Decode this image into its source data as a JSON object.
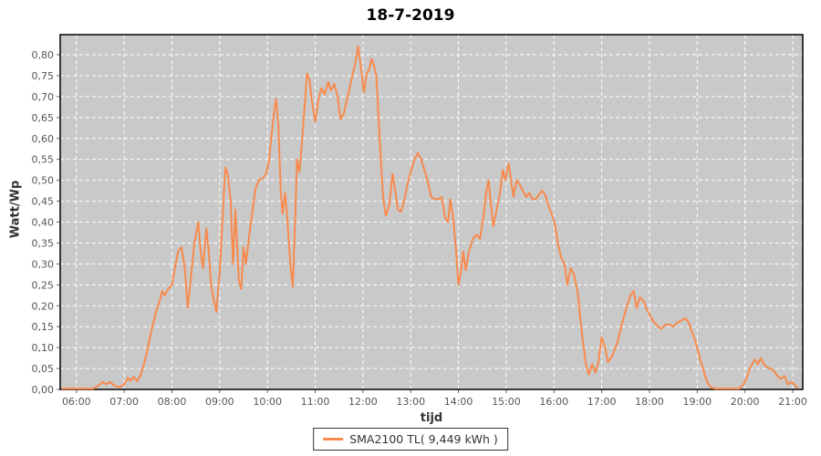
{
  "title": "18-7-2019",
  "axes": {
    "x_label": "tijd",
    "y_label": "Watt/Wp"
  },
  "legend": {
    "series_label": "SMA2100 TL( 9,449 kWh )"
  },
  "colors": {
    "plot_bg": "#c9c9c9",
    "grid": "#ffffff",
    "line": "#f88a4d",
    "tick_text": "#555555",
    "tick_mark": "#666666",
    "plot_border": "#000000"
  },
  "chart_data": {
    "type": "line",
    "title": "18-7-2019",
    "xlabel": "tijd",
    "ylabel": "Watt/Wp",
    "x_unit": "hour_of_day",
    "xlim": [
      5.66,
      21.21
    ],
    "ylim": [
      0,
      0.848
    ],
    "grid": "white dashed on gray background",
    "legend_position": "bottom-center",
    "x_ticks": [
      {
        "v": 6,
        "label": "06:00"
      },
      {
        "v": 7,
        "label": "07:00"
      },
      {
        "v": 8,
        "label": "08:00"
      },
      {
        "v": 9,
        "label": "09:00"
      },
      {
        "v": 10,
        "label": "10:00"
      },
      {
        "v": 11,
        "label": "11:00"
      },
      {
        "v": 12,
        "label": "12:00"
      },
      {
        "v": 13,
        "label": "13:00"
      },
      {
        "v": 14,
        "label": "14:00"
      },
      {
        "v": 15,
        "label": "15:00"
      },
      {
        "v": 16,
        "label": "16:00"
      },
      {
        "v": 17,
        "label": "17:00"
      },
      {
        "v": 18,
        "label": "18:00"
      },
      {
        "v": 19,
        "label": "19:00"
      },
      {
        "v": 20,
        "label": "20:00"
      },
      {
        "v": 21,
        "label": "21:00"
      }
    ],
    "y_ticks": [
      {
        "v": 0.0,
        "label": "0,00"
      },
      {
        "v": 0.05,
        "label": "0,05"
      },
      {
        "v": 0.1,
        "label": "0,10"
      },
      {
        "v": 0.15,
        "label": "0,15"
      },
      {
        "v": 0.2,
        "label": "0,20"
      },
      {
        "v": 0.25,
        "label": "0,25"
      },
      {
        "v": 0.3,
        "label": "0,30"
      },
      {
        "v": 0.35,
        "label": "0,35"
      },
      {
        "v": 0.4,
        "label": "0,40"
      },
      {
        "v": 0.45,
        "label": "0,45"
      },
      {
        "v": 0.5,
        "label": "0,50"
      },
      {
        "v": 0.55,
        "label": "0,55"
      },
      {
        "v": 0.6,
        "label": "0,60"
      },
      {
        "v": 0.65,
        "label": "0,65"
      },
      {
        "v": 0.7,
        "label": "0,70"
      },
      {
        "v": 0.75,
        "label": "0,75"
      },
      {
        "v": 0.8,
        "label": "0,80"
      }
    ],
    "series": [
      {
        "name": "SMA2100 TL( 9,449 kWh )",
        "color": "#f88a4d",
        "points": [
          [
            5.7,
            0.002
          ],
          [
            6.0,
            0.002
          ],
          [
            6.2,
            0.002
          ],
          [
            6.35,
            0.002
          ],
          [
            6.45,
            0.008
          ],
          [
            6.55,
            0.018
          ],
          [
            6.62,
            0.012
          ],
          [
            6.7,
            0.018
          ],
          [
            6.78,
            0.01
          ],
          [
            6.9,
            0.005
          ],
          [
            7.0,
            0.012
          ],
          [
            7.08,
            0.028
          ],
          [
            7.13,
            0.02
          ],
          [
            7.2,
            0.03
          ],
          [
            7.27,
            0.02
          ],
          [
            7.33,
            0.03
          ],
          [
            7.4,
            0.055
          ],
          [
            7.47,
            0.085
          ],
          [
            7.53,
            0.12
          ],
          [
            7.6,
            0.155
          ],
          [
            7.68,
            0.19
          ],
          [
            7.75,
            0.215
          ],
          [
            7.8,
            0.235
          ],
          [
            7.85,
            0.225
          ],
          [
            7.92,
            0.24
          ],
          [
            8.0,
            0.25
          ],
          [
            8.07,
            0.295
          ],
          [
            8.13,
            0.33
          ],
          [
            8.2,
            0.34
          ],
          [
            8.27,
            0.29
          ],
          [
            8.33,
            0.195
          ],
          [
            8.4,
            0.27
          ],
          [
            8.47,
            0.35
          ],
          [
            8.55,
            0.4
          ],
          [
            8.6,
            0.33
          ],
          [
            8.65,
            0.29
          ],
          [
            8.72,
            0.385
          ],
          [
            8.77,
            0.33
          ],
          [
            8.82,
            0.25
          ],
          [
            8.88,
            0.21
          ],
          [
            8.93,
            0.185
          ],
          [
            9.0,
            0.28
          ],
          [
            9.07,
            0.43
          ],
          [
            9.12,
            0.53
          ],
          [
            9.17,
            0.515
          ],
          [
            9.23,
            0.45
          ],
          [
            9.28,
            0.3
          ],
          [
            9.33,
            0.43
          ],
          [
            9.4,
            0.26
          ],
          [
            9.45,
            0.24
          ],
          [
            9.5,
            0.34
          ],
          [
            9.55,
            0.3
          ],
          [
            9.62,
            0.37
          ],
          [
            9.68,
            0.42
          ],
          [
            9.75,
            0.48
          ],
          [
            9.82,
            0.5
          ],
          [
            9.9,
            0.505
          ],
          [
            9.97,
            0.515
          ],
          [
            10.03,
            0.545
          ],
          [
            10.08,
            0.6
          ],
          [
            10.13,
            0.655
          ],
          [
            10.18,
            0.695
          ],
          [
            10.23,
            0.63
          ],
          [
            10.28,
            0.47
          ],
          [
            10.32,
            0.42
          ],
          [
            10.37,
            0.47
          ],
          [
            10.42,
            0.4
          ],
          [
            10.48,
            0.3
          ],
          [
            10.53,
            0.245
          ],
          [
            10.58,
            0.4
          ],
          [
            10.62,
            0.55
          ],
          [
            10.67,
            0.52
          ],
          [
            10.73,
            0.6
          ],
          [
            10.78,
            0.68
          ],
          [
            10.83,
            0.755
          ],
          [
            10.88,
            0.74
          ],
          [
            10.93,
            0.69
          ],
          [
            11.0,
            0.64
          ],
          [
            11.07,
            0.695
          ],
          [
            11.13,
            0.72
          ],
          [
            11.2,
            0.705
          ],
          [
            11.27,
            0.735
          ],
          [
            11.33,
            0.715
          ],
          [
            11.4,
            0.73
          ],
          [
            11.47,
            0.7
          ],
          [
            11.53,
            0.645
          ],
          [
            11.6,
            0.66
          ],
          [
            11.68,
            0.7
          ],
          [
            11.77,
            0.745
          ],
          [
            11.83,
            0.775
          ],
          [
            11.9,
            0.82
          ],
          [
            11.97,
            0.76
          ],
          [
            12.02,
            0.71
          ],
          [
            12.08,
            0.755
          ],
          [
            12.13,
            0.765
          ],
          [
            12.18,
            0.79
          ],
          [
            12.23,
            0.775
          ],
          [
            12.28,
            0.75
          ],
          [
            12.35,
            0.6
          ],
          [
            12.42,
            0.46
          ],
          [
            12.48,
            0.415
          ],
          [
            12.55,
            0.44
          ],
          [
            12.62,
            0.515
          ],
          [
            12.68,
            0.47
          ],
          [
            12.73,
            0.43
          ],
          [
            12.8,
            0.425
          ],
          [
            12.87,
            0.455
          ],
          [
            12.93,
            0.49
          ],
          [
            13.0,
            0.52
          ],
          [
            13.08,
            0.55
          ],
          [
            13.15,
            0.565
          ],
          [
            13.22,
            0.55
          ],
          [
            13.3,
            0.52
          ],
          [
            13.37,
            0.49
          ],
          [
            13.43,
            0.46
          ],
          [
            13.5,
            0.455
          ],
          [
            13.58,
            0.455
          ],
          [
            13.65,
            0.46
          ],
          [
            13.72,
            0.41
          ],
          [
            13.78,
            0.4
          ],
          [
            13.83,
            0.455
          ],
          [
            13.9,
            0.4
          ],
          [
            13.95,
            0.33
          ],
          [
            14.0,
            0.25
          ],
          [
            14.05,
            0.28
          ],
          [
            14.1,
            0.33
          ],
          [
            14.15,
            0.285
          ],
          [
            14.22,
            0.33
          ],
          [
            14.3,
            0.36
          ],
          [
            14.38,
            0.37
          ],
          [
            14.45,
            0.36
          ],
          [
            14.52,
            0.41
          ],
          [
            14.58,
            0.47
          ],
          [
            14.63,
            0.5
          ],
          [
            14.68,
            0.44
          ],
          [
            14.73,
            0.39
          ],
          [
            14.8,
            0.43
          ],
          [
            14.87,
            0.47
          ],
          [
            14.93,
            0.525
          ],
          [
            14.98,
            0.5
          ],
          [
            15.05,
            0.54
          ],
          [
            15.1,
            0.5
          ],
          [
            15.15,
            0.46
          ],
          [
            15.22,
            0.5
          ],
          [
            15.28,
            0.49
          ],
          [
            15.35,
            0.475
          ],
          [
            15.42,
            0.46
          ],
          [
            15.48,
            0.47
          ],
          [
            15.55,
            0.455
          ],
          [
            15.62,
            0.455
          ],
          [
            15.68,
            0.465
          ],
          [
            15.75,
            0.475
          ],
          [
            15.82,
            0.465
          ],
          [
            15.88,
            0.44
          ],
          [
            15.95,
            0.42
          ],
          [
            16.02,
            0.395
          ],
          [
            16.08,
            0.35
          ],
          [
            16.15,
            0.315
          ],
          [
            16.22,
            0.3
          ],
          [
            16.28,
            0.25
          ],
          [
            16.35,
            0.29
          ],
          [
            16.42,
            0.275
          ],
          [
            16.5,
            0.23
          ],
          [
            16.58,
            0.14
          ],
          [
            16.67,
            0.06
          ],
          [
            16.73,
            0.035
          ],
          [
            16.8,
            0.06
          ],
          [
            16.87,
            0.04
          ],
          [
            16.93,
            0.065
          ],
          [
            17.0,
            0.125
          ],
          [
            17.07,
            0.1
          ],
          [
            17.13,
            0.065
          ],
          [
            17.22,
            0.08
          ],
          [
            17.32,
            0.11
          ],
          [
            17.42,
            0.155
          ],
          [
            17.52,
            0.195
          ],
          [
            17.6,
            0.225
          ],
          [
            17.67,
            0.235
          ],
          [
            17.73,
            0.195
          ],
          [
            17.8,
            0.22
          ],
          [
            17.88,
            0.21
          ],
          [
            17.95,
            0.19
          ],
          [
            18.02,
            0.175
          ],
          [
            18.1,
            0.16
          ],
          [
            18.18,
            0.15
          ],
          [
            18.25,
            0.145
          ],
          [
            18.33,
            0.155
          ],
          [
            18.42,
            0.155
          ],
          [
            18.5,
            0.15
          ],
          [
            18.58,
            0.16
          ],
          [
            18.67,
            0.165
          ],
          [
            18.75,
            0.17
          ],
          [
            18.82,
            0.16
          ],
          [
            18.88,
            0.14
          ],
          [
            18.95,
            0.12
          ],
          [
            19.03,
            0.085
          ],
          [
            19.12,
            0.05
          ],
          [
            19.2,
            0.02
          ],
          [
            19.28,
            0.005
          ],
          [
            19.38,
            0.002
          ],
          [
            19.55,
            0.002
          ],
          [
            19.72,
            0.002
          ],
          [
            19.88,
            0.002
          ],
          [
            19.97,
            0.012
          ],
          [
            20.03,
            0.025
          ],
          [
            20.1,
            0.05
          ],
          [
            20.17,
            0.065
          ],
          [
            20.22,
            0.072
          ],
          [
            20.27,
            0.06
          ],
          [
            20.33,
            0.075
          ],
          [
            20.4,
            0.06
          ],
          [
            20.47,
            0.052
          ],
          [
            20.53,
            0.05
          ],
          [
            20.6,
            0.045
          ],
          [
            20.68,
            0.032
          ],
          [
            20.75,
            0.025
          ],
          [
            20.83,
            0.032
          ],
          [
            20.9,
            0.012
          ],
          [
            20.98,
            0.018
          ],
          [
            21.05,
            0.01
          ],
          [
            21.1,
            0.004
          ]
        ]
      }
    ]
  }
}
